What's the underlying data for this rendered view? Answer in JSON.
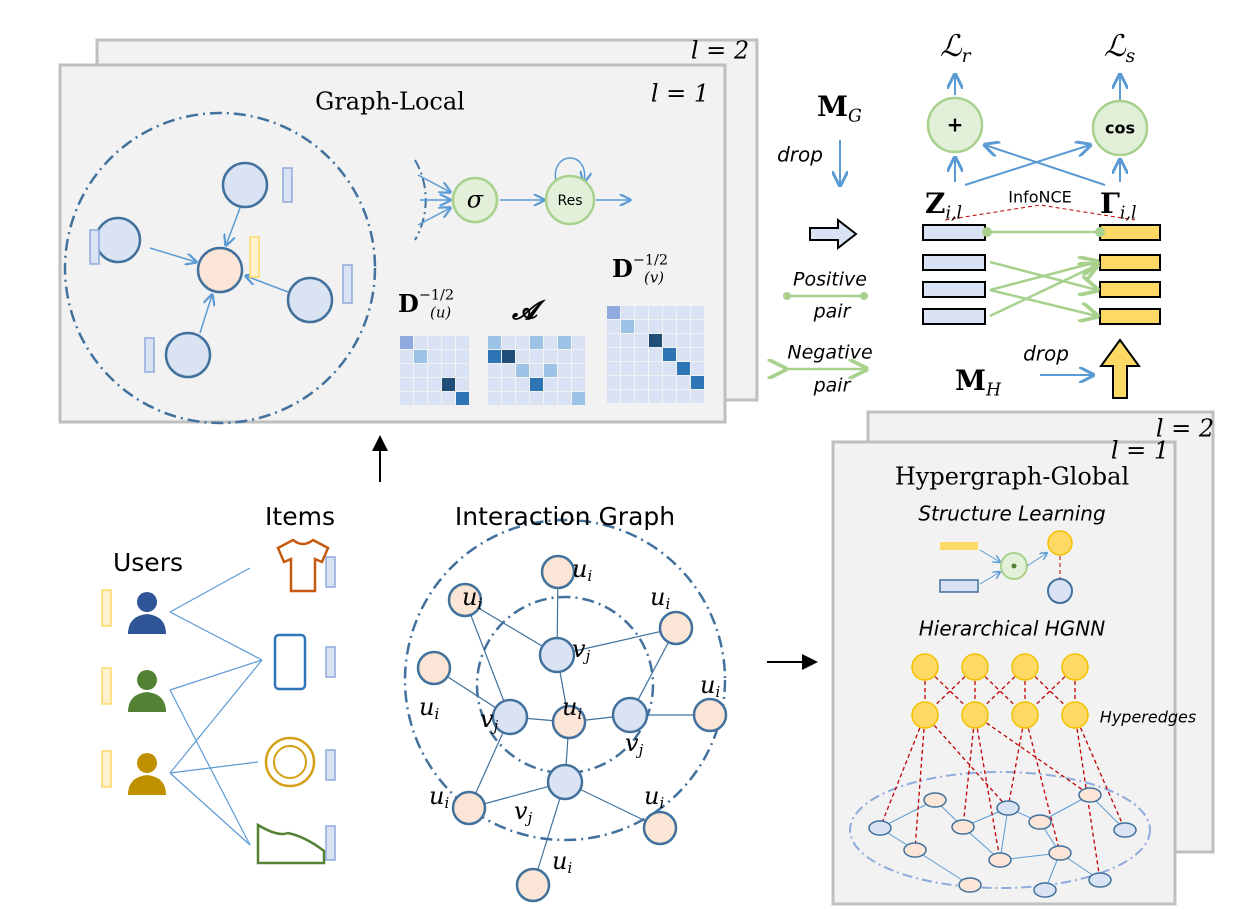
{
  "graph_local": {
    "layers": [
      "l = 2",
      "l = 1"
    ],
    "title": "Graph-Local",
    "activation": "σ",
    "residual": "Res",
    "matrices": [
      {
        "symbol": "D",
        "sup": "−1/2",
        "sub": "(u)"
      },
      {
        "symbol": "𝓐"
      },
      {
        "symbol": "D",
        "sup": "−1/2",
        "sub": "(v)"
      }
    ]
  },
  "contrastive": {
    "mask_graph": {
      "symbol": "M",
      "sub": "G"
    },
    "drop_graph": "drop",
    "mask_hyper": {
      "symbol": "M",
      "sub": "H"
    },
    "drop_hyper": "drop",
    "losses": [
      {
        "symbol": "ℒ",
        "sub": "r"
      },
      {
        "symbol": "ℒ",
        "sub": "s"
      }
    ],
    "ops": [
      "+",
      "cos"
    ],
    "z": {
      "symbol": "Z",
      "sub": "i,l"
    },
    "gamma": {
      "symbol": "Γ",
      "sub": "i,l"
    },
    "infonce": "InfoNCE",
    "positive": [
      "Positive",
      "pair"
    ],
    "negative": [
      "Negative",
      "pair"
    ]
  },
  "hypergraph_global": {
    "layers": [
      "l = 2",
      "l = 1"
    ],
    "title": "Hypergraph-Global",
    "structure_learning": "Structure Learning",
    "hierarchical": "Hierarchical HGNN",
    "hyperedges": "Hyperedges"
  },
  "input": {
    "items": "Items",
    "users": "Users"
  },
  "interaction_graph": {
    "title": "Interaction Graph",
    "labels": [
      {
        "symbol": "u",
        "sub": "i"
      },
      {
        "symbol": "u",
        "sub": "i"
      },
      {
        "symbol": "u",
        "sub": "i"
      },
      {
        "symbol": "u",
        "sub": "i"
      },
      {
        "symbol": "u",
        "sub": "i"
      },
      {
        "symbol": "u",
        "sub": "i"
      },
      {
        "symbol": "u",
        "sub": "i"
      },
      {
        "symbol": "u",
        "sub": "i"
      },
      {
        "symbol": "u",
        "sub": "i"
      },
      {
        "symbol": "v",
        "sub": "j"
      },
      {
        "symbol": "v",
        "sub": "j"
      },
      {
        "symbol": "v",
        "sub": "j"
      },
      {
        "symbol": "v",
        "sub": "j"
      }
    ]
  }
}
